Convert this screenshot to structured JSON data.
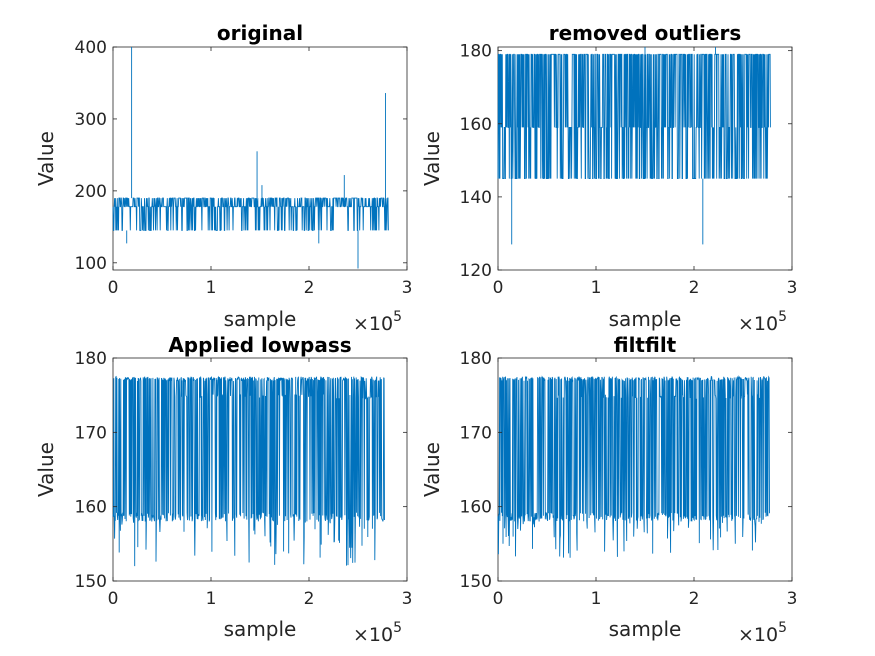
{
  "figure": {
    "background": "#ffffff",
    "trace_color": "#0072BD",
    "axis_color": "#262626"
  },
  "chart_data": [
    {
      "type": "line",
      "title": "original",
      "xlabel": "sample",
      "ylabel": "Value",
      "xlim": [
        0,
        300000
      ],
      "ylim": [
        90,
        400
      ],
      "xticks": [
        0,
        100000,
        200000,
        300000
      ],
      "xtick_labels": [
        "0",
        "1",
        "2",
        "3"
      ],
      "yticks": [
        100,
        200,
        300,
        400
      ],
      "ytick_labels": [
        "100",
        "200",
        "300",
        "400"
      ],
      "x_multiplier": {
        "base": "×10",
        "exponent": "5"
      },
      "signal": {
        "x_max": 281000,
        "levels": [
          145,
          178,
          190
        ],
        "band_low": 145,
        "band_high": 190,
        "baseline": 178,
        "spikes": [
          [
            19000,
            400
          ],
          [
            147000,
            255
          ],
          [
            152000,
            208
          ],
          [
            236000,
            222
          ],
          [
            278000,
            336
          ]
        ],
        "dips": [
          [
            14000,
            127
          ],
          [
            210000,
            127
          ],
          [
            250000,
            92
          ]
        ]
      }
    },
    {
      "type": "line",
      "title": "removed outliers",
      "xlabel": "sample",
      "ylabel": "Value",
      "xlim": [
        0,
        300000
      ],
      "ylim": [
        120,
        181
      ],
      "xticks": [
        0,
        100000,
        200000,
        300000
      ],
      "xtick_labels": [
        "0",
        "1",
        "2",
        "3"
      ],
      "yticks": [
        120,
        140,
        160,
        180
      ],
      "ytick_labels": [
        "120",
        "140",
        "160",
        "180"
      ],
      "x_multiplier": {
        "base": "×10",
        "exponent": "5"
      },
      "signal": {
        "x_max": 278000,
        "levels": [
          145,
          159,
          177,
          179
        ],
        "band_low": 145,
        "band_high": 179,
        "spikes": [
          [
            150000,
            181
          ],
          [
            222000,
            181
          ]
        ],
        "dips": [
          [
            14000,
            127
          ],
          [
            209000,
            127
          ]
        ]
      }
    },
    {
      "type": "line",
      "title": "Applied lowpass",
      "xlabel": "sample",
      "ylabel": "Value",
      "xlim": [
        0,
        300000
      ],
      "ylim": [
        150,
        180
      ],
      "xticks": [
        0,
        100000,
        200000,
        300000
      ],
      "xtick_labels": [
        "0",
        "1",
        "2",
        "3"
      ],
      "yticks": [
        150,
        160,
        170,
        180
      ],
      "ytick_labels": [
        "150",
        "160",
        "170",
        "180"
      ],
      "x_multiplier": {
        "base": "×10",
        "exponent": "5"
      },
      "signal": {
        "x_max": 277000,
        "levels": [
          158,
          174.5,
          177.5
        ],
        "band_low": 158,
        "band_high": 177.5,
        "min_dip": 152
      }
    },
    {
      "type": "line",
      "title": "filtfilt",
      "xlabel": "sample",
      "ylabel": "Value",
      "xlim": [
        0,
        300000
      ],
      "ylim": [
        150,
        180
      ],
      "xticks": [
        0,
        100000,
        200000,
        300000
      ],
      "xtick_labels": [
        "0",
        "1",
        "2",
        "3"
      ],
      "yticks": [
        150,
        160,
        170,
        180
      ],
      "ytick_labels": [
        "150",
        "160",
        "170",
        "180"
      ],
      "x_multiplier": {
        "base": "×10",
        "exponent": "5"
      },
      "signal": {
        "x_max": 277000,
        "levels": [
          158,
          174.5,
          177.5
        ],
        "band_low": 158,
        "band_high": 177.5,
        "min_dip": 153
      }
    }
  ]
}
